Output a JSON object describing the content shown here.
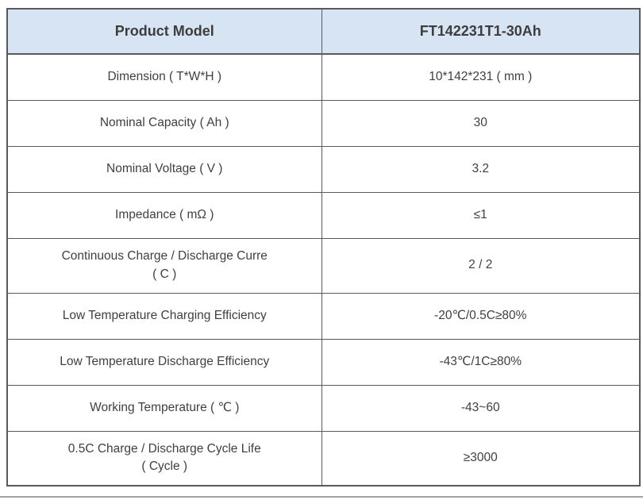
{
  "table": {
    "header": {
      "model_label": "Product Model",
      "model_value": "FT142231T1-30Ah"
    },
    "rows": [
      {
        "label": "Dimension ( T*W*H )",
        "value": "10*142*231 ( mm )"
      },
      {
        "label": "Nominal Capacity ( Ah )",
        "value": "30"
      },
      {
        "label": "Nominal Voltage ( V )",
        "value": "3.2"
      },
      {
        "label": "Impedance ( mΩ )",
        "value": "≤1"
      },
      {
        "label": "Continuous Charge / Discharge Curre\n( C )",
        "value": "2 / 2"
      },
      {
        "label": "Low Temperature Charging Efficiency",
        "value": "-20℃/0.5C≥80%"
      },
      {
        "label": "Low Temperature Discharge Efficiency",
        "value": "-43℃/1C≥80%"
      },
      {
        "label": "Working Temperature ( ℃ )",
        "value": "-43~60"
      },
      {
        "label": "0.5C Charge / Discharge Cycle Life\n( Cycle )",
        "value": "≥3000"
      }
    ],
    "colors": {
      "header_bg": "#d7e4f3",
      "border": "#595959",
      "text": "#404040"
    }
  }
}
